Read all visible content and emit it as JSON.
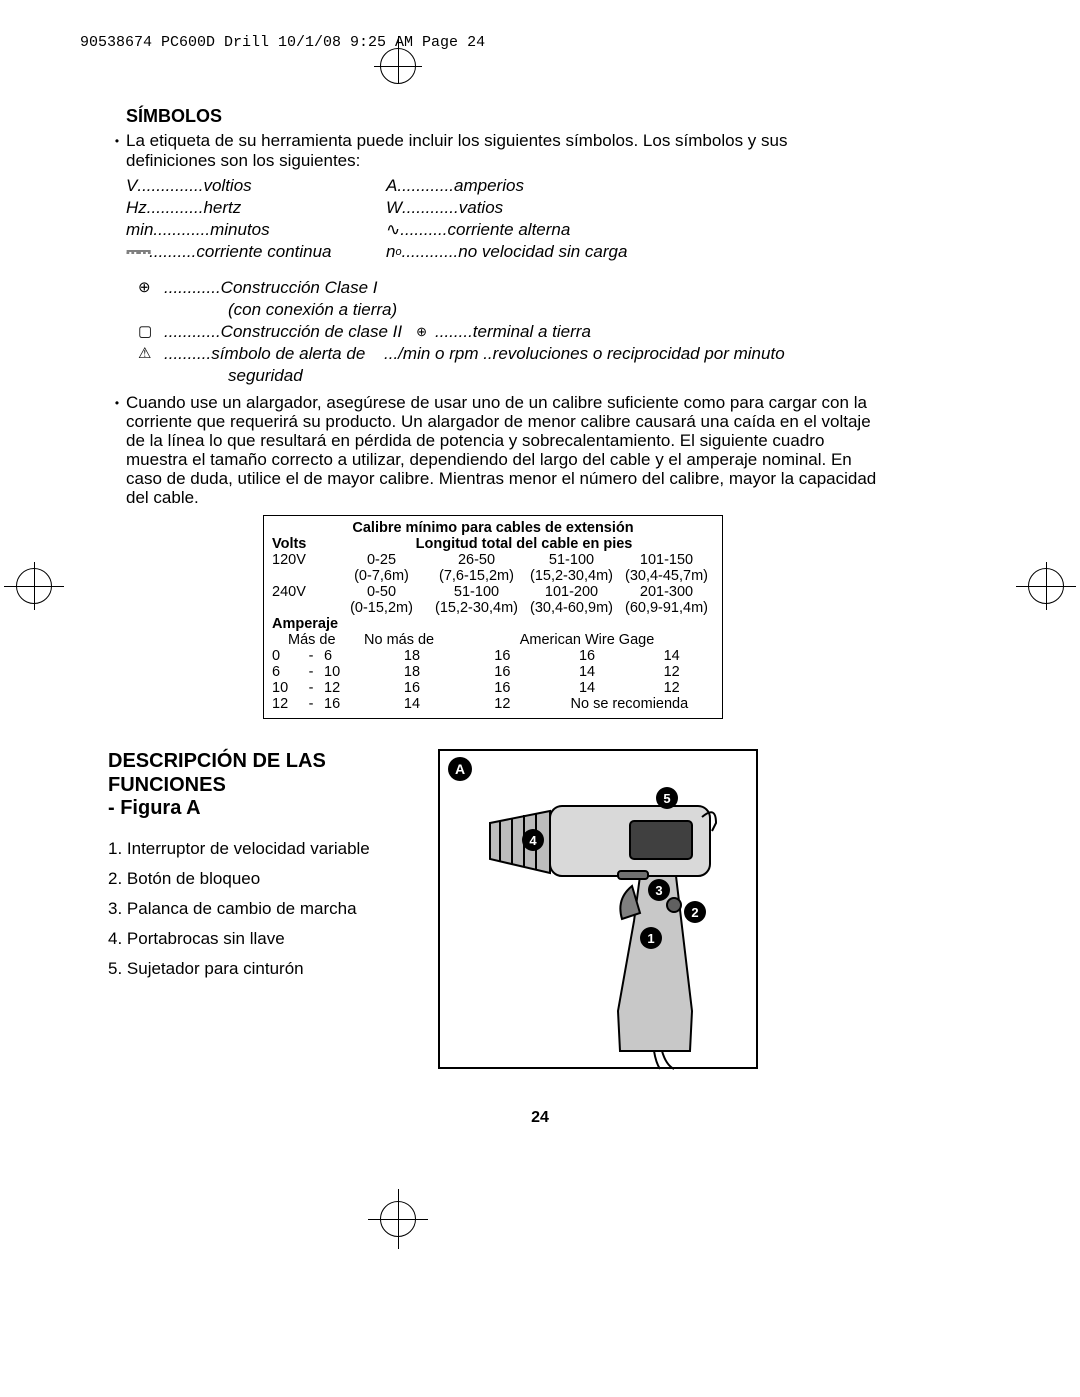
{
  "header": "90538674 PC600D Drill  10/1/08  9:25 AM  Page 24",
  "section_title": "SÍMBOLOS",
  "intro": "La etiqueta de su herramienta puede incluir los siguientes símbolos. Los símbolos y sus definiciones son los siguientes:",
  "symbols": {
    "rows": [
      {
        "lk": "V",
        "ld": "..............",
        "lv": "voltios",
        "rk": "A",
        "rd": "............",
        "rv": "amperios"
      },
      {
        "lk": "Hz",
        "ld": "............",
        "lv": "hertz",
        "rk": "W",
        "rd": "............",
        "rv": "vatios"
      },
      {
        "lk": "min",
        "ld": "............",
        "lv": "minutos",
        "rk": "∿",
        "rd": "..........",
        "rv": "corriente alterna"
      },
      {
        "lk": "⎓",
        "ld": "..........",
        "lv": "corriente continua",
        "rk": "n",
        "rksub": "o",
        "rd": "............",
        "rv": "no velocidad sin carga"
      }
    ]
  },
  "class_block": {
    "r1_icon": "⊕",
    "r1_text": "............Construcción Clase I",
    "r1_sub": "(con conexión a tierra)",
    "r2_icon": "▢",
    "r2_text": "............Construcción de clase II",
    "r2_ricon": "⊕",
    "r2_rtext": "........terminal a tierra",
    "r3_icon": "⚠",
    "r3_text": "..........símbolo de alerta de",
    "r3_mid": ".../min o rpm ..",
    "r3_rtext": "revoluciones o reciprocidad por minuto",
    "r3_sub": "seguridad"
  },
  "cord_para": "Cuando use un alargador, asegúrese de usar uno de un calibre suficiente como para cargar con la corriente que requerirá su producto. Un alargador de menor calibre causará una caída en el voltaje de la línea lo que resultará en pérdida de potencia y sobrecalentamiento. El siguiente cuadro muestra el tamaño correcto a utilizar, dependiendo del largo del cable y el amperaje nominal. En caso de duda, utilice el de mayor calibre. Mientras menor el número del calibre, mayor la capacidad del cable.",
  "gauge": {
    "title": "Calibre mínimo para cables de extensión",
    "volts_label": "Volts",
    "length_label": "Longitud total del cable en pies",
    "v120": "120V",
    "v240": "240V",
    "cols120": [
      "0-25",
      "26-50",
      "51-100",
      "101-150"
    ],
    "cols120m": [
      "(0-7,6m)",
      "(7,6-15,2m)",
      "(15,2-30,4m)",
      "(30,4-45,7m)"
    ],
    "cols240": [
      "0-50",
      "51-100",
      "101-200",
      "201-300"
    ],
    "cols240m": [
      "(0-15,2m)",
      "(15,2-30,4m)",
      "(30,4-60,9m)",
      "(60,9-91,4m)"
    ],
    "amperaje": "Amperaje",
    "mas_de": "Más de",
    "no_mas_de": "No más de",
    "awg": "American Wire Gage",
    "rows": [
      {
        "a": "0",
        "b": "6",
        "g": [
          "18",
          "16",
          "16",
          "14"
        ]
      },
      {
        "a": "6",
        "b": "10",
        "g": [
          "18",
          "16",
          "14",
          "12"
        ]
      },
      {
        "a": "10",
        "b": "12",
        "g": [
          "16",
          "16",
          "14",
          "12"
        ]
      },
      {
        "a": "12",
        "b": "16",
        "g": [
          "14",
          "12"
        ],
        "nr": "No se recomienda"
      }
    ]
  },
  "funciones": {
    "title1": "DESCRIPCIÓN DE LAS",
    "title2": "FUNCIONES",
    "sub": "- Figura A",
    "items": [
      "1. Interruptor de velocidad variable",
      "2. Botón de bloqueo",
      "3. Palanca de cambio de marcha",
      "4. Portabrocas sin llave",
      "5. Sujetador para cinturón"
    ],
    "fig_label": "A",
    "callouts": [
      "1",
      "2",
      "3",
      "4",
      "5"
    ]
  },
  "page_number": "24"
}
